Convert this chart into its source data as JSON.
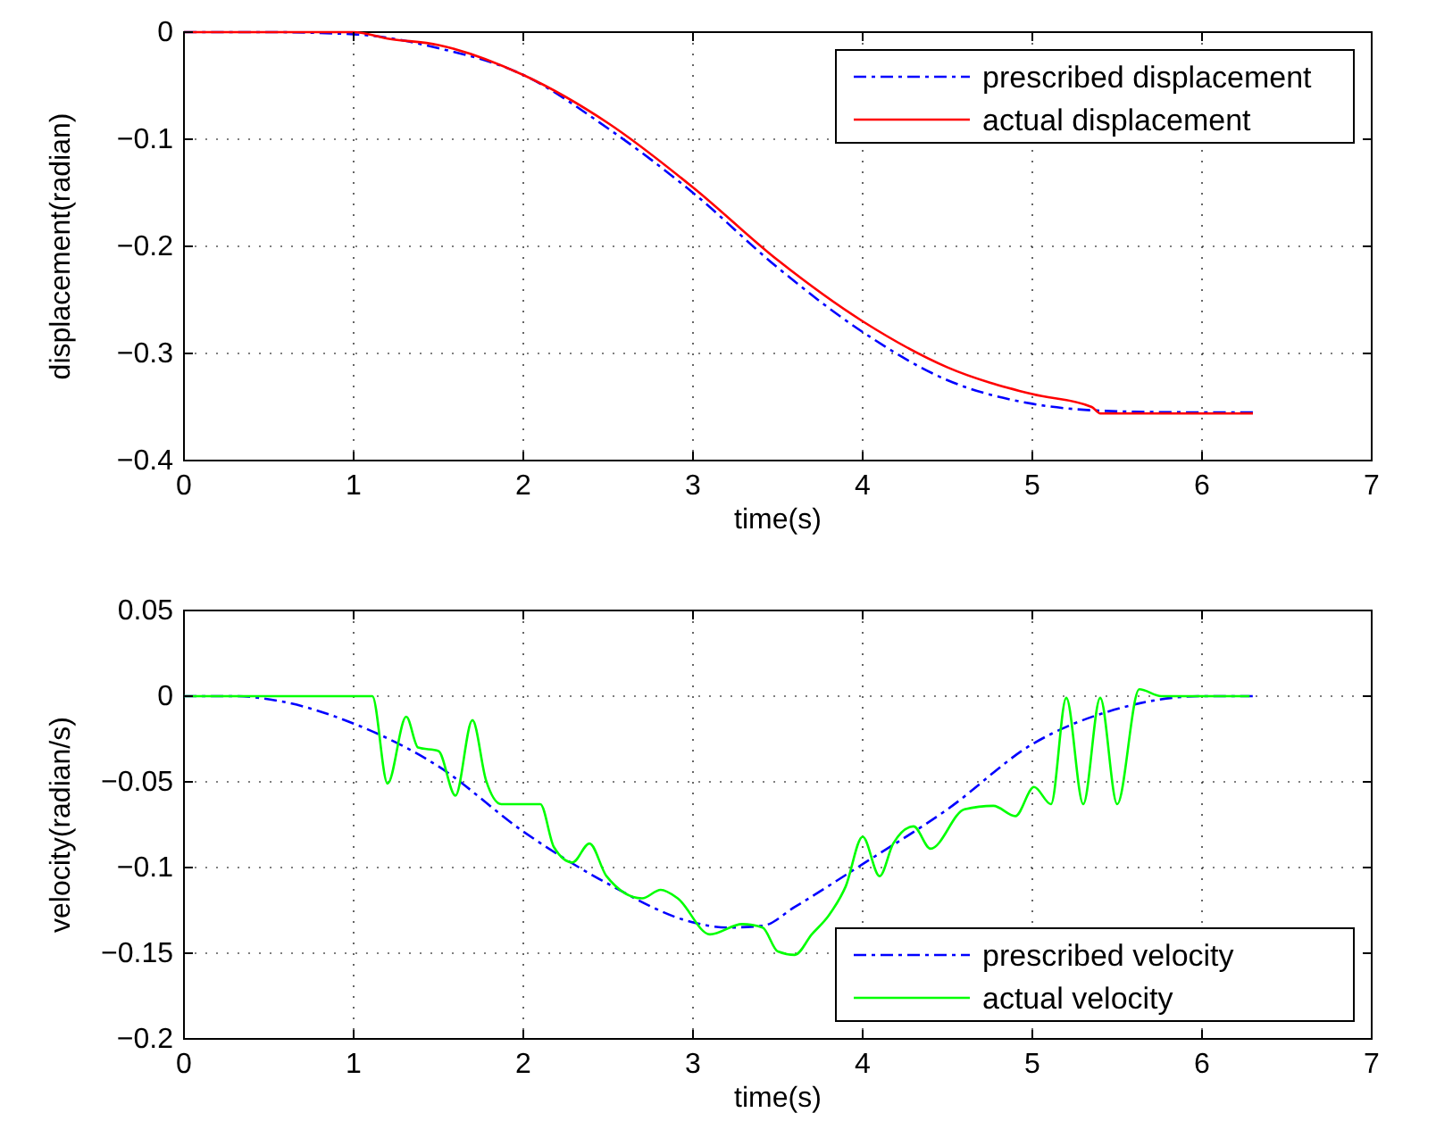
{
  "chart_data": [
    {
      "type": "line",
      "xlabel": "time(s)",
      "ylabel": "displacement(radian)",
      "xlim": [
        0,
        7
      ],
      "xticks": [
        0,
        1,
        2,
        3,
        4,
        5,
        6,
        7
      ],
      "ylim": [
        -0.4,
        0
      ],
      "yticks": [
        -0.4,
        -0.3,
        -0.2,
        -0.1,
        0
      ],
      "grid": true,
      "legend": "top right",
      "series": [
        {
          "name": "prescribed displacement",
          "color": "#0000ff",
          "line_style": "dashed",
          "x": [
            0,
            0.5,
            1,
            1.5,
            2,
            2.5,
            3,
            3.5,
            4,
            4.5,
            5,
            5.5,
            6,
            6.3
          ],
          "values": [
            0,
            0,
            -0.002,
            -0.015,
            -0.04,
            -0.09,
            -0.15,
            -0.22,
            -0.28,
            -0.325,
            -0.347,
            -0.354,
            -0.355,
            -0.355
          ]
        },
        {
          "name": "actual displacement",
          "color": "#ff0000",
          "line_style": "solid",
          "x": [
            0,
            0.9,
            1,
            1.2,
            1.5,
            2,
            2.5,
            3,
            3.5,
            4,
            4.5,
            5,
            5.35,
            5.4,
            6.3
          ],
          "values": [
            0,
            0,
            0,
            -0.006,
            -0.012,
            -0.04,
            -0.085,
            -0.145,
            -0.213,
            -0.27,
            -0.313,
            -0.338,
            -0.35,
            -0.356,
            -0.356
          ]
        }
      ]
    },
    {
      "type": "line",
      "xlabel": "time(s)",
      "ylabel": "velocity(radian/s)",
      "xlim": [
        0,
        7
      ],
      "xticks": [
        0,
        1,
        2,
        3,
        4,
        5,
        6,
        7
      ],
      "ylim": [
        -0.2,
        0.05
      ],
      "yticks": [
        {
          "value": -0.2,
          "label": "−0.2"
        },
        -0.15,
        -0.1,
        -0.05,
        0,
        0.05
      ],
      "grid": true,
      "legend": "bottom right",
      "series": [
        {
          "name": "prescribed velocity",
          "color": "#0000ff",
          "line_style": "dashed",
          "x": [
            0,
            0.3,
            0.57,
            1,
            1.5,
            2,
            2.49,
            3,
            3.2,
            3.41,
            3.6,
            4,
            4.5,
            5,
            5.48,
            6,
            6.3
          ],
          "values": [
            0,
            0,
            -0.003,
            -0.016,
            -0.041,
            -0.079,
            -0.109,
            -0.132,
            -0.135,
            -0.134,
            -0.123,
            -0.098,
            -0.066,
            -0.028,
            -0.008,
            0,
            0
          ]
        },
        {
          "name": "actual velocity",
          "color": "#00ff00",
          "line_style": "solid",
          "x": [
            0,
            1.11,
            1.2,
            1.31,
            1.38,
            1.5,
            1.6,
            1.7,
            1.78,
            1.87,
            2.1,
            2.18,
            2.29,
            2.39,
            2.49,
            2.7,
            2.81,
            2.91,
            3.1,
            3.29,
            3.41,
            3.5,
            3.6,
            3.7,
            3.8,
            3.9,
            4.0,
            4.1,
            4.18,
            4.3,
            4.4,
            4.6,
            4.77,
            4.9,
            5.01,
            5.11,
            5.2,
            5.3,
            5.4,
            5.5,
            5.63,
            5.76,
            6.28
          ],
          "values": [
            0,
            0,
            -0.051,
            -0.012,
            -0.03,
            -0.032,
            -0.058,
            -0.014,
            -0.049,
            -0.063,
            -0.063,
            -0.088,
            -0.097,
            -0.086,
            -0.105,
            -0.118,
            -0.113,
            -0.118,
            -0.139,
            -0.133,
            -0.135,
            -0.149,
            -0.151,
            -0.139,
            -0.128,
            -0.111,
            -0.082,
            -0.105,
            -0.086,
            -0.076,
            -0.089,
            -0.066,
            -0.064,
            -0.07,
            -0.053,
            -0.063,
            -0.001,
            -0.063,
            -0.001,
            -0.063,
            0.004,
            0,
            0
          ]
        }
      ]
    }
  ]
}
